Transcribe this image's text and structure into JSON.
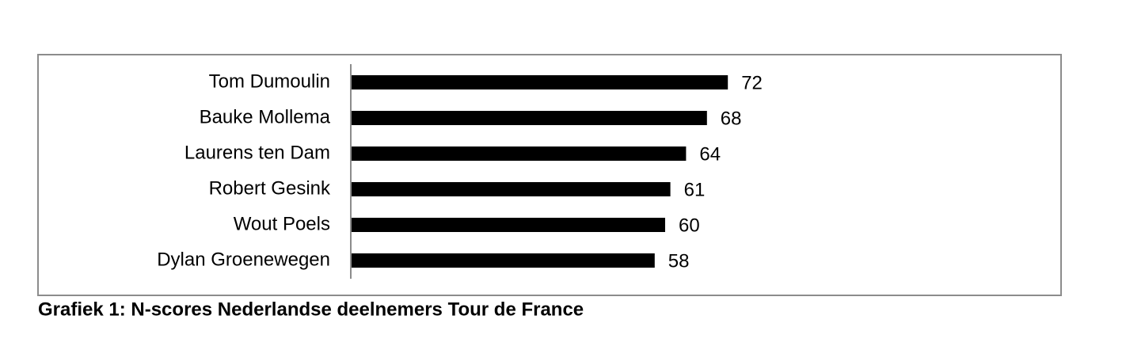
{
  "chart_data": {
    "type": "bar",
    "orientation": "horizontal",
    "caption": "Grafiek 1: N-scores Nederlandse deelnemers Tour de France",
    "categories": [
      "Tom Dumoulin",
      "Bauke Mollema",
      "Laurens ten Dam",
      "Robert Gesink",
      "Wout Poels",
      "Dylan Groenewegen"
    ],
    "values": [
      72,
      68,
      64,
      61,
      60,
      58
    ],
    "color": "#000000"
  }
}
